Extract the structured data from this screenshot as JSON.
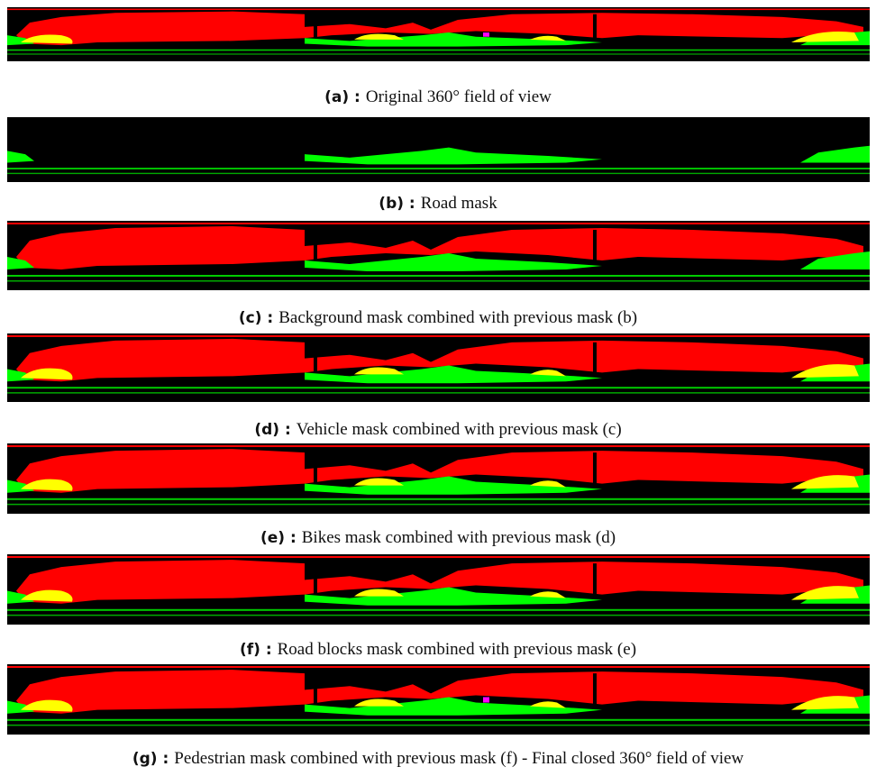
{
  "panels": [
    {
      "label": "(a) :",
      "caption": "Original 360° field of view"
    },
    {
      "label": "(b) :",
      "caption": "Road mask"
    },
    {
      "label": "(c) :",
      "caption": "Background mask combined with previous mask (b)"
    },
    {
      "label": "(d) :",
      "caption": "Vehicle mask combined with previous mask (c)"
    },
    {
      "label": "(e) :",
      "caption": "Bikes mask combined with previous mask (d)"
    },
    {
      "label": "(f) :",
      "caption": "Road blocks mask combined with previous mask (e)"
    },
    {
      "label": "(g) :",
      "caption": "Pedestrian mask combined with previous mask (f) - Final closed 360° field of view"
    }
  ]
}
